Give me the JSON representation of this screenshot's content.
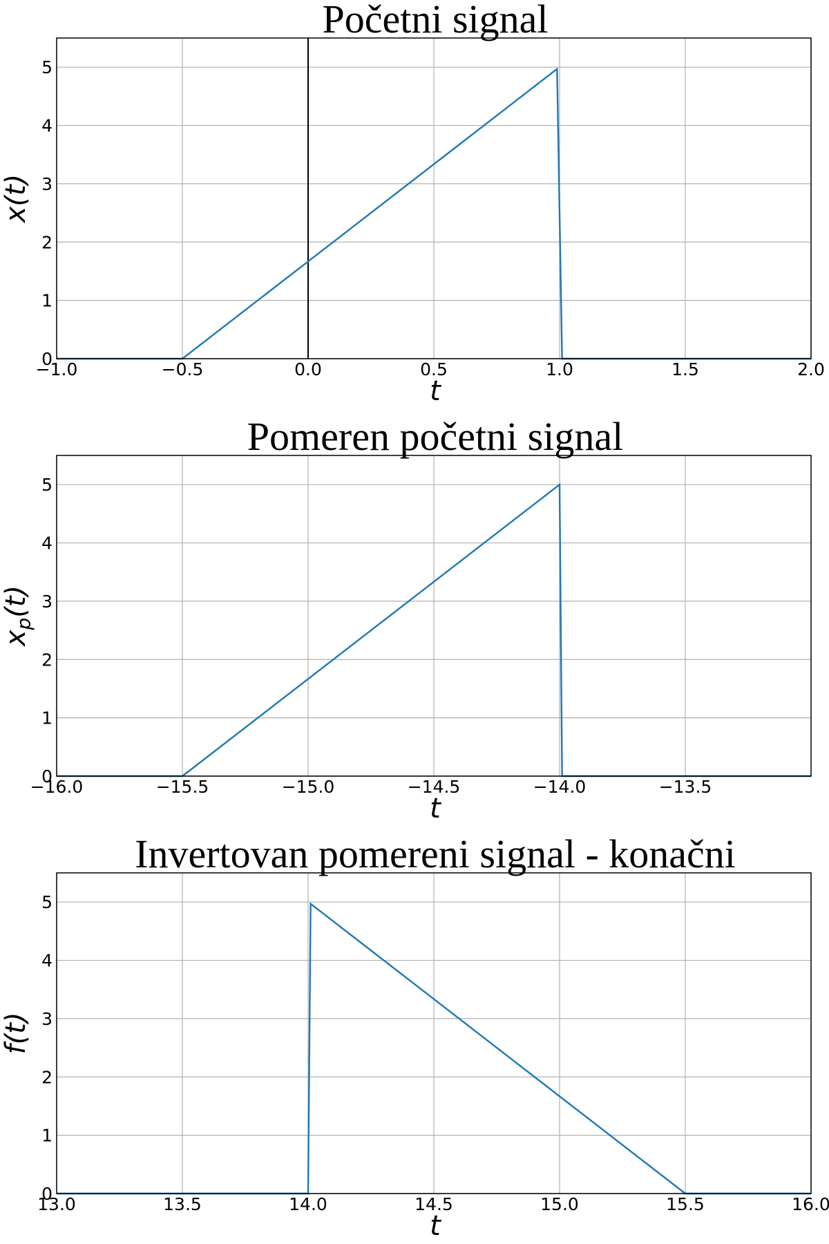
{
  "colors": {
    "signal": "#1f77b4",
    "grid": "#b0b0b0",
    "axis": "#000000"
  },
  "chart_data": [
    {
      "type": "line",
      "title": "Početni signal",
      "xlabel": "t",
      "ylabel": "x(t)",
      "xlim": [
        -1.0,
        2.0
      ],
      "ylim": [
        0,
        5.5
      ],
      "xticks": [
        "−1.0",
        "−0.5",
        "0.0",
        "0.5",
        "1.0",
        "1.5",
        "2.0"
      ],
      "xtick_values": [
        -1.0,
        -0.5,
        0.0,
        0.5,
        1.0,
        1.5,
        2.0
      ],
      "yticks": [
        "0",
        "1",
        "2",
        "3",
        "4",
        "5"
      ],
      "ytick_values": [
        0,
        1,
        2,
        3,
        4,
        5
      ],
      "grid": true,
      "vline_at_x": 0,
      "series": [
        {
          "x": [
            -1.0,
            -0.5,
            0.99,
            1.01,
            2.0
          ],
          "y": [
            0,
            0,
            4.97,
            0,
            0
          ]
        }
      ]
    },
    {
      "type": "line",
      "title": "Pomeren početni signal",
      "xlabel": "t",
      "ylabel": "x",
      "ylabel_sub": "p",
      "ylabel_suffix": "(t)",
      "xlim": [
        -16.0,
        -13.0
      ],
      "ylim": [
        0,
        5.5
      ],
      "xticks": [
        "−16.0",
        "−15.5",
        "−15.0",
        "−14.5",
        "−14.0",
        "−13.5"
      ],
      "xtick_values": [
        -16.0,
        -15.5,
        -15.0,
        -14.5,
        -14.0,
        -13.5
      ],
      "yticks": [
        "0",
        "1",
        "2",
        "3",
        "4",
        "5"
      ],
      "ytick_values": [
        0,
        1,
        2,
        3,
        4,
        5
      ],
      "grid": true,
      "series": [
        {
          "x": [
            -16.0,
            -15.5,
            -14.0,
            -13.99,
            -13.0
          ],
          "y": [
            0,
            0,
            5.0,
            0,
            0
          ]
        }
      ]
    },
    {
      "type": "line",
      "title": "Invertovan pomereni signal - konačni",
      "xlabel": "t",
      "ylabel": "f(t)",
      "xlim": [
        13.0,
        16.0
      ],
      "ylim": [
        0,
        5.5
      ],
      "xticks": [
        "13.0",
        "13.5",
        "14.0",
        "14.5",
        "15.0",
        "15.5",
        "16.0"
      ],
      "xtick_values": [
        13.0,
        13.5,
        14.0,
        14.5,
        15.0,
        15.5,
        16.0
      ],
      "yticks": [
        "0",
        "1",
        "2",
        "3",
        "4",
        "5"
      ],
      "ytick_values": [
        0,
        1,
        2,
        3,
        4,
        5
      ],
      "grid": true,
      "series": [
        {
          "x": [
            13.0,
            14.0,
            14.01,
            15.5,
            16.0
          ],
          "y": [
            0,
            0,
            4.97,
            0,
            0
          ]
        }
      ]
    }
  ]
}
